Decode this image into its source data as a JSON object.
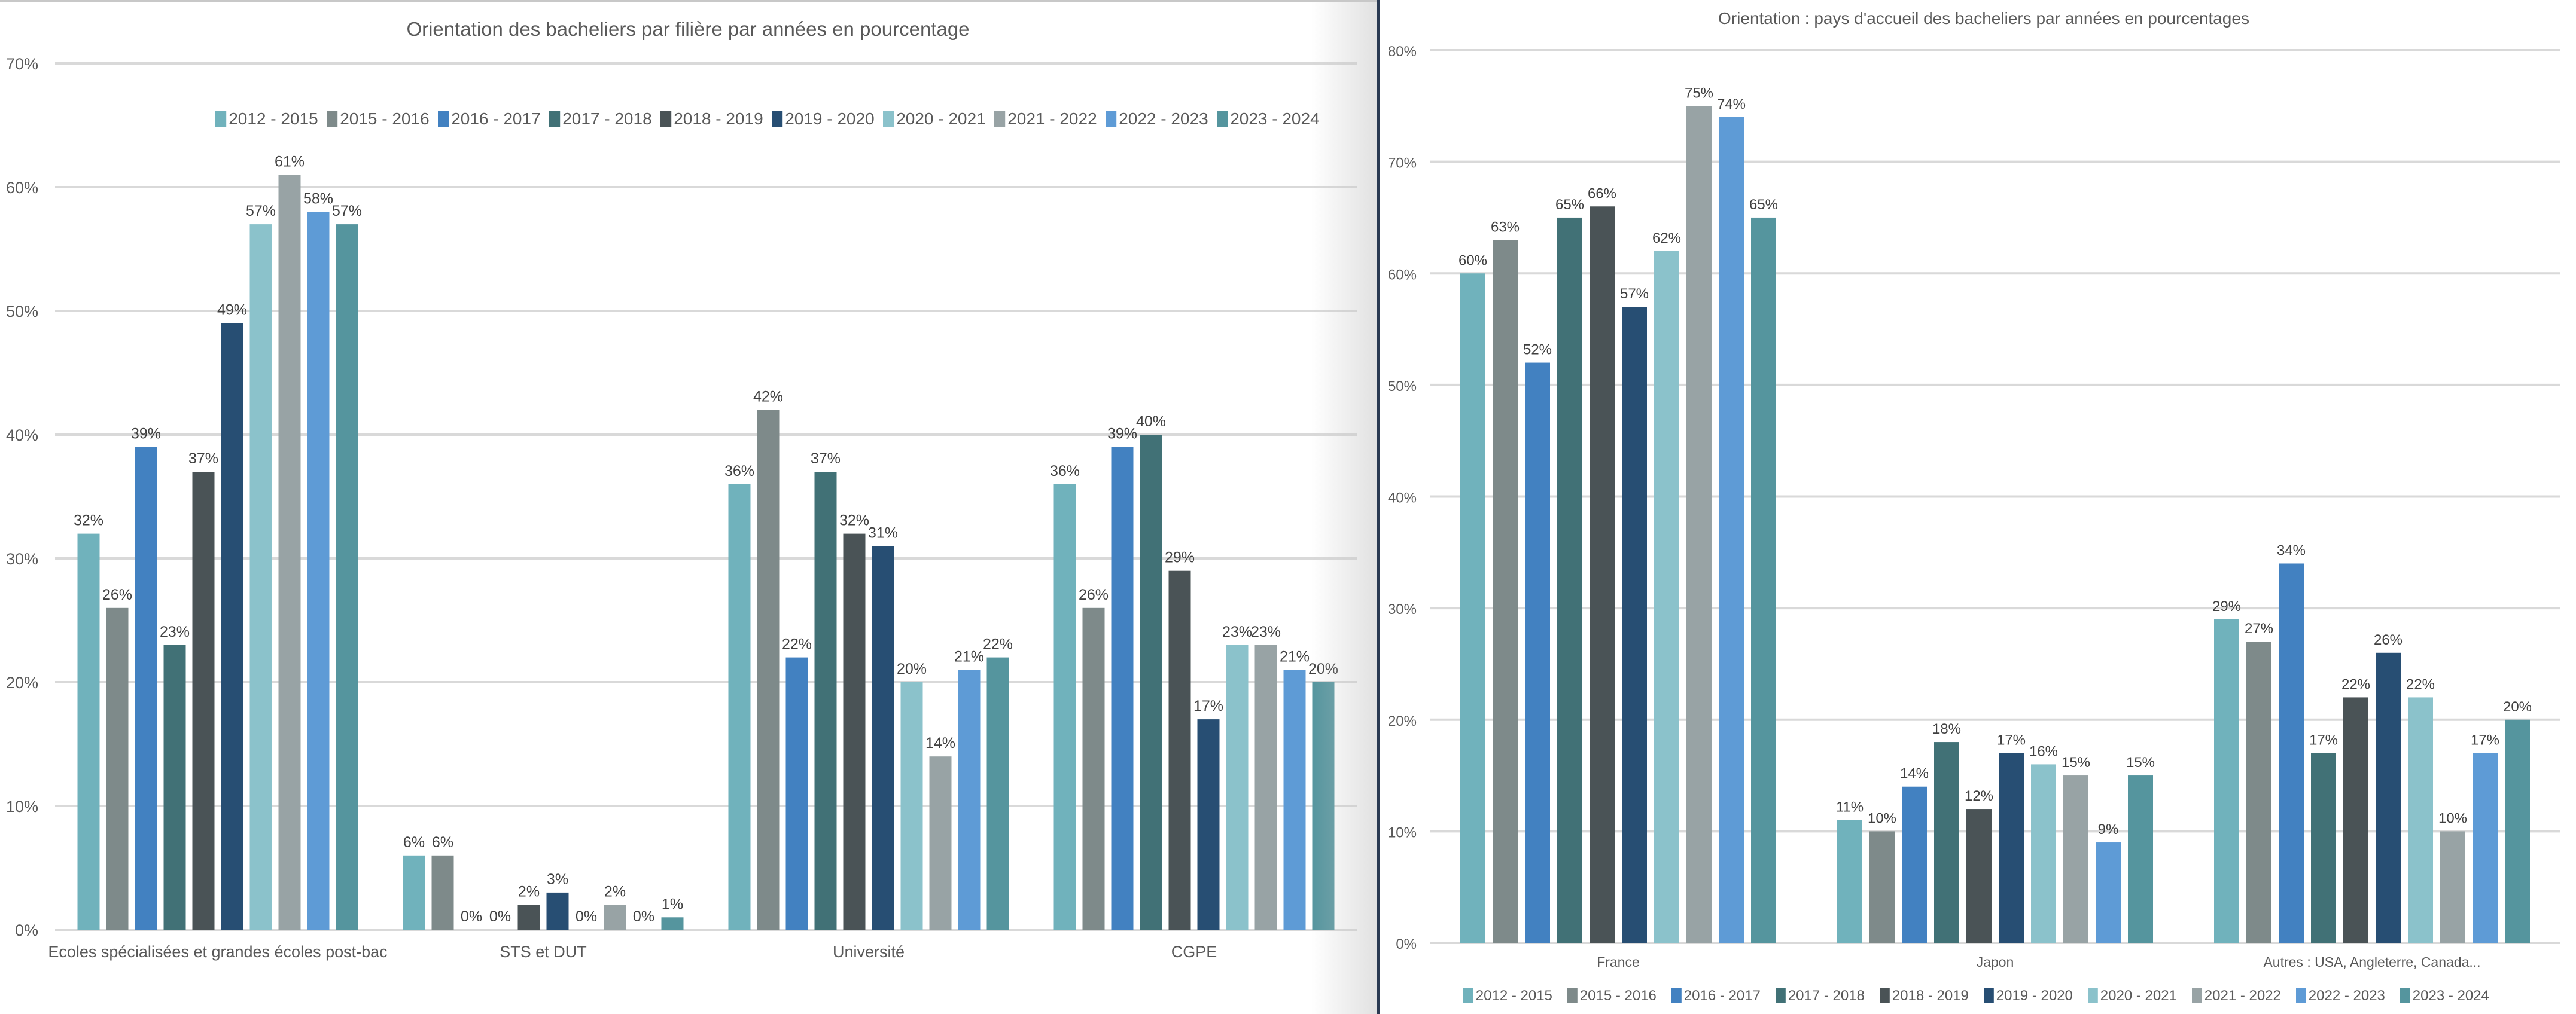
{
  "legend": [
    "2012 - 2015",
    "2015 - 2016",
    "2016 - 2017",
    "2017 - 2018",
    "2018 - 2019",
    "2019 - 2020",
    "2020 - 2021",
    "2021 - 2022",
    "2022 - 2023",
    "2023 - 2024"
  ],
  "colors": [
    "#70B2BC",
    "#7E8A8A",
    "#4281C1",
    "#417176",
    "#4A5356",
    "#274E73",
    "#8BC2CB",
    "#98A3A5",
    "#5E9BD6",
    "#55959E"
  ],
  "chart_data": [
    {
      "type": "bar",
      "title": "Orientation des bacheliers par filière par années en pourcentage",
      "xlabel": "",
      "ylabel": "",
      "ylim": [
        0,
        70
      ],
      "yticks": [
        "0%",
        "10%",
        "20%",
        "30%",
        "40%",
        "50%",
        "60%",
        "70%"
      ],
      "grid": true,
      "legend_position": "top",
      "categories": [
        "Ecoles spécialisées et grandes écoles post-bac",
        "STS et DUT",
        "Université",
        "CGPE"
      ],
      "series": [
        {
          "name": "2012 - 2015",
          "values": [
            32,
            6,
            36,
            36
          ],
          "labels": [
            "32%",
            "6%",
            "36%",
            "36%"
          ]
        },
        {
          "name": "2015 - 2016",
          "values": [
            26,
            6,
            42,
            26
          ],
          "labels": [
            "26%",
            "6%",
            "42%",
            "26%"
          ]
        },
        {
          "name": "2016 - 2017",
          "values": [
            39,
            0,
            22,
            39
          ],
          "labels": [
            "39%",
            "0%",
            "22%",
            "39%"
          ]
        },
        {
          "name": "2017 - 2018",
          "values": [
            23,
            0,
            37,
            40
          ],
          "labels": [
            "23%",
            "0%",
            "37%",
            "40%"
          ]
        },
        {
          "name": "2018 - 2019",
          "values": [
            37,
            2,
            32,
            29
          ],
          "labels": [
            "37%",
            "2%",
            "32%",
            "29%"
          ]
        },
        {
          "name": "2019 - 2020",
          "values": [
            49,
            3,
            31,
            17
          ],
          "labels": [
            "49%",
            "3%",
            "31%",
            "17%"
          ]
        },
        {
          "name": "2020 - 2021",
          "values": [
            57,
            0,
            20,
            23
          ],
          "labels": [
            "57%",
            "0%",
            "20%",
            "23%"
          ]
        },
        {
          "name": "2021 - 2022",
          "values": [
            61,
            2,
            14,
            23
          ],
          "labels": [
            "61%",
            "2%",
            "14%",
            "23%"
          ]
        },
        {
          "name": "2022 - 2023",
          "values": [
            58,
            0,
            21,
            21
          ],
          "labels": [
            "58%",
            "0%",
            "21%",
            "21%"
          ]
        },
        {
          "name": "2023 - 2024",
          "values": [
            57,
            1,
            22,
            20
          ],
          "labels": [
            "57%",
            "1%",
            "22%",
            "20%"
          ]
        }
      ]
    },
    {
      "type": "bar",
      "title": "Orientation : pays d'accueil des bacheliers par années en pourcentages",
      "xlabel": "",
      "ylabel": "",
      "ylim": [
        0,
        80
      ],
      "yticks": [
        "0%",
        "10%",
        "20%",
        "30%",
        "40%",
        "50%",
        "60%",
        "70%",
        "80%"
      ],
      "grid": true,
      "legend_position": "bottom",
      "categories": [
        "France",
        "Japon",
        "Autres : USA, Angleterre, Canada..."
      ],
      "series": [
        {
          "name": "2012 - 2015",
          "values": [
            60,
            11,
            29
          ],
          "labels": [
            "60%",
            "11%",
            "29%"
          ]
        },
        {
          "name": "2015 - 2016",
          "values": [
            63,
            10,
            27
          ],
          "labels": [
            "63%",
            "10%",
            "27%"
          ]
        },
        {
          "name": "2016 - 2017",
          "values": [
            52,
            14,
            34
          ],
          "labels": [
            "52%",
            "14%",
            "34%"
          ]
        },
        {
          "name": "2017 - 2018",
          "values": [
            65,
            18,
            17
          ],
          "labels": [
            "65%",
            "18%",
            "17%"
          ]
        },
        {
          "name": "2018 - 2019",
          "values": [
            66,
            12,
            22
          ],
          "labels": [
            "66%",
            "12%",
            "22%"
          ]
        },
        {
          "name": "2019 - 2020",
          "values": [
            57,
            17,
            26
          ],
          "labels": [
            "57%",
            "17%",
            "26%"
          ]
        },
        {
          "name": "2020 - 2021",
          "values": [
            62,
            16,
            22
          ],
          "labels": [
            "62%",
            "16%",
            "22%"
          ]
        },
        {
          "name": "2021 - 2022",
          "values": [
            75,
            15,
            10
          ],
          "labels": [
            "75%",
            "15%",
            "10%"
          ]
        },
        {
          "name": "2022 - 2023",
          "values": [
            74,
            9,
            17
          ],
          "labels": [
            "74%",
            "9%",
            "17%"
          ]
        },
        {
          "name": "2023 - 2024",
          "values": [
            65,
            15,
            20
          ],
          "labels": [
            "65%",
            "15%",
            "20%"
          ]
        }
      ]
    }
  ]
}
